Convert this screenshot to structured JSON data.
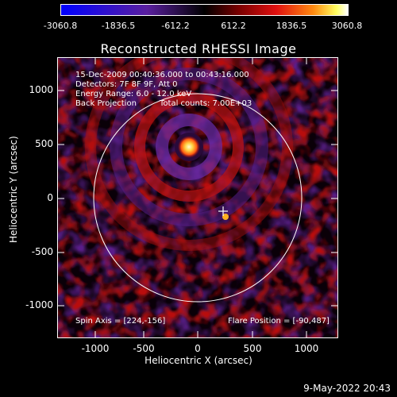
{
  "colorbar": {
    "ticks": [
      "-3060.8",
      "-1836.5",
      "-612.2",
      "612.2",
      "1836.5",
      "3060.8"
    ]
  },
  "title": "Reconstructed RHESSI Image",
  "info": {
    "line1": "15-Dec-2009 00:40:36.000 to 00:43:16.000",
    "line2": "Detectors: 7F 8F 9F, Att 0",
    "line3": "Energy Range: 6.0 - 12.0 keV",
    "line4_left": "Back Projection",
    "line4_right": "Total counts: 7.00E+03",
    "spin_axis": "Spin Axis = [224,-156]",
    "flare_position": "Flare Position = [-90,487]"
  },
  "axes": {
    "xlabel": "Heliocentric X (arcsec)",
    "ylabel": "Heliocentric Y (arcsec)",
    "xticks": [
      "-1000",
      "-500",
      "0",
      "500",
      "1000"
    ],
    "yticks": [
      "1000",
      "500",
      "0",
      "-500",
      "-1000"
    ]
  },
  "datestamp": "9-May-2022 20:43",
  "colors": {
    "background": "#000000",
    "annotation": "#ffffff",
    "limb_circle": "#ffffff"
  }
}
